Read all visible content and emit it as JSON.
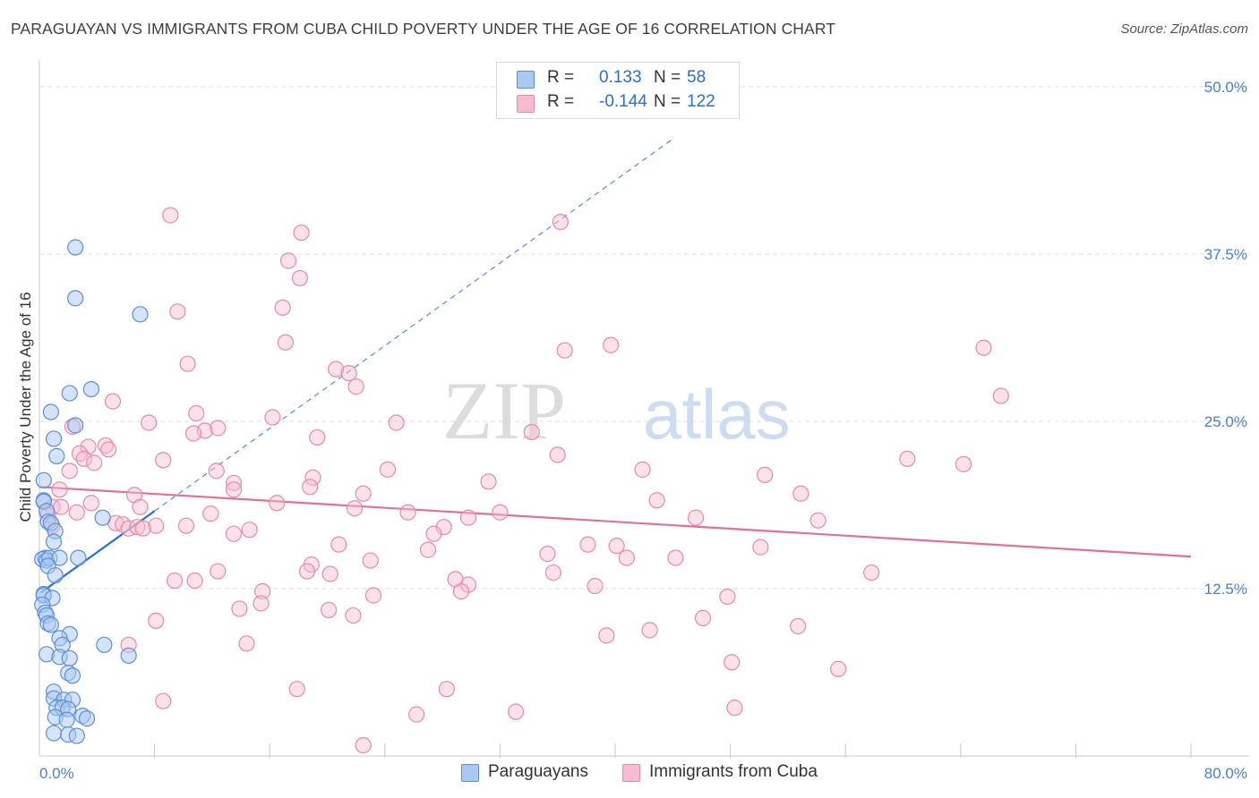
{
  "title": "PARAGUAYAN VS IMMIGRANTS FROM CUBA CHILD POVERTY UNDER THE AGE OF 16 CORRELATION CHART",
  "source": "Source: ZipAtlas.com",
  "watermark": {
    "zip": "ZIP",
    "atlas": "atlas"
  },
  "legend_top": {
    "rows": [
      {
        "swatch_color": "#aac8f0",
        "r_label": "R =",
        "r_value": "0.133",
        "n_label": "N =",
        "n_value": "58"
      },
      {
        "swatch_color": "#f7bcd0",
        "r_label": "R =",
        "r_value": "-0.144",
        "n_label": "N =",
        "n_value": "122"
      }
    ]
  },
  "legend_bottom": [
    {
      "label": "Paraguayans",
      "swatch_color": "#aac8f0"
    },
    {
      "label": "Immigrants from Cuba",
      "swatch_color": "#f7bcd0"
    }
  ],
  "colors": {
    "blue_fill": "#aac8f0",
    "blue_stroke": "#5b8fd8",
    "blue_line": "#2a6fd0",
    "pink_fill": "#f7bcd0",
    "pink_stroke": "#e58aaa",
    "pink_line": "#e0709a",
    "grid": "#d8dce3",
    "tick_text": "#4a7fd4"
  },
  "chart_data": {
    "type": "scatter",
    "title": "PARAGUAYAN VS IMMIGRANTS FROM CUBA CHILD POVERTY UNDER THE AGE OF 16 CORRELATION CHART",
    "xlabel": "",
    "ylabel": "Child Poverty Under the Age of 16",
    "xlim": [
      0,
      80
    ],
    "ylim": [
      0,
      50
    ],
    "x_tick_labels": [
      "0.0%",
      "80.0%"
    ],
    "y_ticks": [
      12.5,
      25.0,
      37.5,
      50.0
    ],
    "y_tick_labels": [
      "12.5%",
      "25.0%",
      "37.5%",
      "50.0%"
    ],
    "x_minor_ticks": [
      8,
      16,
      24,
      32,
      40,
      48,
      56,
      64,
      72,
      80
    ],
    "grid": true,
    "legend_position": "top-center",
    "series": [
      {
        "name": "Paraguayans",
        "R": 0.133,
        "N": 58,
        "trend": {
          "x0": 0.1,
          "y0": 12.2,
          "x1": 8.0,
          "y1": 18.3,
          "solid_until": 8.0,
          "dashed_until": 44.0
        },
        "points": [
          [
            2.5,
            38.0
          ],
          [
            2.5,
            34.2
          ],
          [
            7.0,
            33.0
          ],
          [
            2.1,
            27.1
          ],
          [
            3.6,
            27.4
          ],
          [
            0.8,
            25.7
          ],
          [
            2.5,
            24.7
          ],
          [
            1.0,
            23.7
          ],
          [
            1.2,
            22.4
          ],
          [
            0.3,
            20.6
          ],
          [
            0.3,
            19.1
          ],
          [
            0.3,
            19.0
          ],
          [
            0.5,
            18.3
          ],
          [
            4.4,
            17.8
          ],
          [
            0.6,
            17.5
          ],
          [
            0.8,
            17.4
          ],
          [
            1.1,
            16.8
          ],
          [
            1.0,
            16.0
          ],
          [
            0.4,
            14.8
          ],
          [
            0.2,
            14.7
          ],
          [
            0.5,
            14.6
          ],
          [
            0.7,
            14.8
          ],
          [
            1.4,
            14.8
          ],
          [
            2.7,
            14.8
          ],
          [
            0.6,
            14.2
          ],
          [
            1.1,
            13.5
          ],
          [
            0.3,
            12.1
          ],
          [
            0.3,
            12.0
          ],
          [
            0.9,
            11.8
          ],
          [
            0.2,
            11.3
          ],
          [
            0.4,
            10.7
          ],
          [
            0.5,
            10.5
          ],
          [
            0.6,
            9.9
          ],
          [
            0.8,
            9.8
          ],
          [
            2.1,
            9.1
          ],
          [
            1.4,
            8.8
          ],
          [
            1.6,
            8.3
          ],
          [
            4.5,
            8.3
          ],
          [
            0.5,
            7.6
          ],
          [
            1.4,
            7.4
          ],
          [
            2.1,
            7.3
          ],
          [
            6.2,
            7.5
          ],
          [
            2.0,
            6.2
          ],
          [
            2.3,
            6.0
          ],
          [
            1.0,
            4.8
          ],
          [
            1.0,
            4.3
          ],
          [
            1.7,
            4.2
          ],
          [
            2.3,
            4.2
          ],
          [
            1.2,
            3.6
          ],
          [
            1.6,
            3.6
          ],
          [
            2.0,
            3.5
          ],
          [
            1.1,
            2.9
          ],
          [
            1.9,
            2.7
          ],
          [
            3.0,
            3.0
          ],
          [
            3.3,
            2.8
          ],
          [
            1.0,
            1.7
          ],
          [
            2.0,
            1.6
          ],
          [
            2.6,
            1.5
          ]
        ]
      },
      {
        "name": "Immigrants from Cuba",
        "R": -0.144,
        "N": 122,
        "trend": {
          "x0": 0,
          "y0": 20.1,
          "x1": 80,
          "y1": 14.9
        },
        "points": [
          [
            9.1,
            40.4
          ],
          [
            18.2,
            39.1
          ],
          [
            36.2,
            39.9
          ],
          [
            17.3,
            37.0
          ],
          [
            18.1,
            35.7
          ],
          [
            9.6,
            33.2
          ],
          [
            16.9,
            33.5
          ],
          [
            17.1,
            30.9
          ],
          [
            36.5,
            30.3
          ],
          [
            39.7,
            30.7
          ],
          [
            65.6,
            30.5
          ],
          [
            10.3,
            29.3
          ],
          [
            20.6,
            28.9
          ],
          [
            21.5,
            28.6
          ],
          [
            22.0,
            27.6
          ],
          [
            66.8,
            26.9
          ],
          [
            5.1,
            26.5
          ],
          [
            10.9,
            25.6
          ],
          [
            7.6,
            24.9
          ],
          [
            16.2,
            25.3
          ],
          [
            24.8,
            24.9
          ],
          [
            2.3,
            24.6
          ],
          [
            11.5,
            24.3
          ],
          [
            12.4,
            24.5
          ],
          [
            10.7,
            24.1
          ],
          [
            19.3,
            23.8
          ],
          [
            34.2,
            24.2
          ],
          [
            3.4,
            23.1
          ],
          [
            4.6,
            23.2
          ],
          [
            4.8,
            22.9
          ],
          [
            2.8,
            22.6
          ],
          [
            3.1,
            22.2
          ],
          [
            3.8,
            21.9
          ],
          [
            8.6,
            22.1
          ],
          [
            36.0,
            22.5
          ],
          [
            60.3,
            22.2
          ],
          [
            64.2,
            21.8
          ],
          [
            2.1,
            21.3
          ],
          [
            12.3,
            21.3
          ],
          [
            24.2,
            21.4
          ],
          [
            41.9,
            21.4
          ],
          [
            50.4,
            21.0
          ],
          [
            19.0,
            20.8
          ],
          [
            13.5,
            20.4
          ],
          [
            13.5,
            19.9
          ],
          [
            18.8,
            20.1
          ],
          [
            31.2,
            20.5
          ],
          [
            1.4,
            19.9
          ],
          [
            6.6,
            19.5
          ],
          [
            22.5,
            19.6
          ],
          [
            52.9,
            19.6
          ],
          [
            3.6,
            18.9
          ],
          [
            16.5,
            18.9
          ],
          [
            42.9,
            19.1
          ],
          [
            0.9,
            18.6
          ],
          [
            1.5,
            18.6
          ],
          [
            0.6,
            18.0
          ],
          [
            2.6,
            18.2
          ],
          [
            7.0,
            18.6
          ],
          [
            11.9,
            18.1
          ],
          [
            21.9,
            18.5
          ],
          [
            25.6,
            18.2
          ],
          [
            32.0,
            18.2
          ],
          [
            29.8,
            17.8
          ],
          [
            45.6,
            17.8
          ],
          [
            54.1,
            17.6
          ],
          [
            0.9,
            17.2
          ],
          [
            5.3,
            17.4
          ],
          [
            5.8,
            17.3
          ],
          [
            6.2,
            17.0
          ],
          [
            6.8,
            17.1
          ],
          [
            8.1,
            17.2
          ],
          [
            10.2,
            17.2
          ],
          [
            7.2,
            17.0
          ],
          [
            14.6,
            16.9
          ],
          [
            28.1,
            17.1
          ],
          [
            13.5,
            16.6
          ],
          [
            27.4,
            16.6
          ],
          [
            20.8,
            15.8
          ],
          [
            27.0,
            15.4
          ],
          [
            38.1,
            15.8
          ],
          [
            40.1,
            15.7
          ],
          [
            50.1,
            15.6
          ],
          [
            35.3,
            15.1
          ],
          [
            40.8,
            14.8
          ],
          [
            44.2,
            14.8
          ],
          [
            23.0,
            14.6
          ],
          [
            18.9,
            14.3
          ],
          [
            18.6,
            13.8
          ],
          [
            12.4,
            13.8
          ],
          [
            20.2,
            13.6
          ],
          [
            35.7,
            13.7
          ],
          [
            57.8,
            13.7
          ],
          [
            9.4,
            13.1
          ],
          [
            10.8,
            13.1
          ],
          [
            28.9,
            13.2
          ],
          [
            29.8,
            12.8
          ],
          [
            38.6,
            12.7
          ],
          [
            15.5,
            12.3
          ],
          [
            23.2,
            12.0
          ],
          [
            29.3,
            12.3
          ],
          [
            47.8,
            11.9
          ],
          [
            15.4,
            11.4
          ],
          [
            13.9,
            11.0
          ],
          [
            20.1,
            10.9
          ],
          [
            21.8,
            10.5
          ],
          [
            46.1,
            10.3
          ],
          [
            8.1,
            10.1
          ],
          [
            52.7,
            9.7
          ],
          [
            42.4,
            9.4
          ],
          [
            39.4,
            9.0
          ],
          [
            14.4,
            8.4
          ],
          [
            6.2,
            8.3
          ],
          [
            48.1,
            7.0
          ],
          [
            55.5,
            6.5
          ],
          [
            17.9,
            5.0
          ],
          [
            28.3,
            5.0
          ],
          [
            8.6,
            4.1
          ],
          [
            48.3,
            3.6
          ],
          [
            26.2,
            3.1
          ],
          [
            33.1,
            3.3
          ],
          [
            22.5,
            0.8
          ]
        ]
      }
    ]
  }
}
